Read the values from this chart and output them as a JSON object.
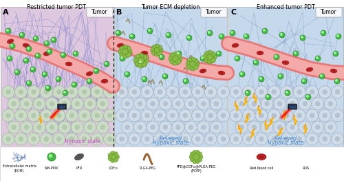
{
  "title_A": "Restricted tumor PDT",
  "title_B": "Tumor ECM depletion",
  "title_C": "Enhanced tumor PDT",
  "panel_A_bg": "#ddc8e0",
  "panel_BC_bg": "#c5d8ec",
  "vessel_outer": "#e87878",
  "vessel_inner": "#f5aaaa",
  "cell_color_A": "#ccdcc8",
  "cell_edge_A": "#9ab890",
  "cell_color_BC": "#d0dce8",
  "cell_edge_BC": "#99aabb",
  "ecm_color_A": "#8888cc",
  "ecm_color_BC": "#7799bb",
  "green_dot": "#44bb44",
  "green_edge": "#228822",
  "rbc_color": "#bb2222",
  "laser_body": "#222222",
  "beam_color": "#ee2222",
  "cof_color": "#88bb44",
  "cof_edge": "#558822",
  "hypoxic_A_color": "#cc44cc",
  "hypoxic_BC_color": "#4488cc",
  "ros_fill": "#ffdd00",
  "ros_edge": "#ff8800"
}
